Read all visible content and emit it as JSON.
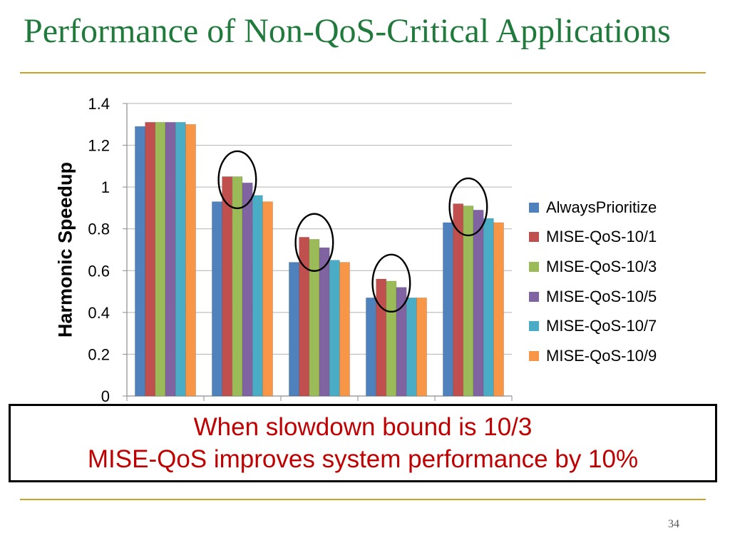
{
  "slide": {
    "title": "Performance of Non-QoS-Critical Applications",
    "page_number": "34"
  },
  "callout": {
    "line1": "When slowdown bound is 10/3",
    "line2": "MISE-QoS improves system performance by 10%"
  },
  "colors": {
    "title": "#1f7a3c",
    "rule": "#c9a227",
    "callout_text": "#c00000"
  },
  "chart_data": {
    "type": "bar",
    "title": "",
    "xlabel": "",
    "ylabel": "Harmonic Speedup",
    "ylim": [
      0,
      1.4
    ],
    "yticks": [
      0,
      0.2,
      0.4,
      0.6,
      0.8,
      1,
      1.2,
      1.4
    ],
    "ytick_labels": [
      "0",
      "0.2",
      "0.4",
      "0.6",
      "0.8",
      "1",
      "1.2",
      "1.4"
    ],
    "grid": true,
    "legend_position": "right",
    "group_count": 5,
    "series": [
      {
        "name": "AlwaysPrioritize",
        "color": "#4f81bd",
        "values": [
          1.29,
          0.93,
          0.64,
          0.47,
          0.83
        ]
      },
      {
        "name": "MISE-QoS-10/1",
        "color": "#c0504d",
        "values": [
          1.31,
          1.05,
          0.76,
          0.56,
          0.92
        ]
      },
      {
        "name": "MISE-QoS-10/3",
        "color": "#9bbb59",
        "values": [
          1.31,
          1.05,
          0.75,
          0.55,
          0.91
        ]
      },
      {
        "name": "MISE-QoS-10/5",
        "color": "#8064a2",
        "values": [
          1.31,
          1.02,
          0.71,
          0.52,
          0.89
        ]
      },
      {
        "name": "MISE-QoS-10/7",
        "color": "#4bacc6",
        "values": [
          1.31,
          0.96,
          0.65,
          0.47,
          0.85
        ]
      },
      {
        "name": "MISE-QoS-10/9",
        "color": "#f79646",
        "values": [
          1.3,
          0.93,
          0.64,
          0.47,
          0.83
        ]
      }
    ],
    "annotations": [
      {
        "type": "circle",
        "group": 1,
        "series_from": 1,
        "series_to": 3
      },
      {
        "type": "circle",
        "group": 2,
        "series_from": 1,
        "series_to": 3
      },
      {
        "type": "circle",
        "group": 3,
        "series_from": 1,
        "series_to": 3
      },
      {
        "type": "circle",
        "group": 4,
        "series_from": 1,
        "series_to": 3
      }
    ]
  }
}
